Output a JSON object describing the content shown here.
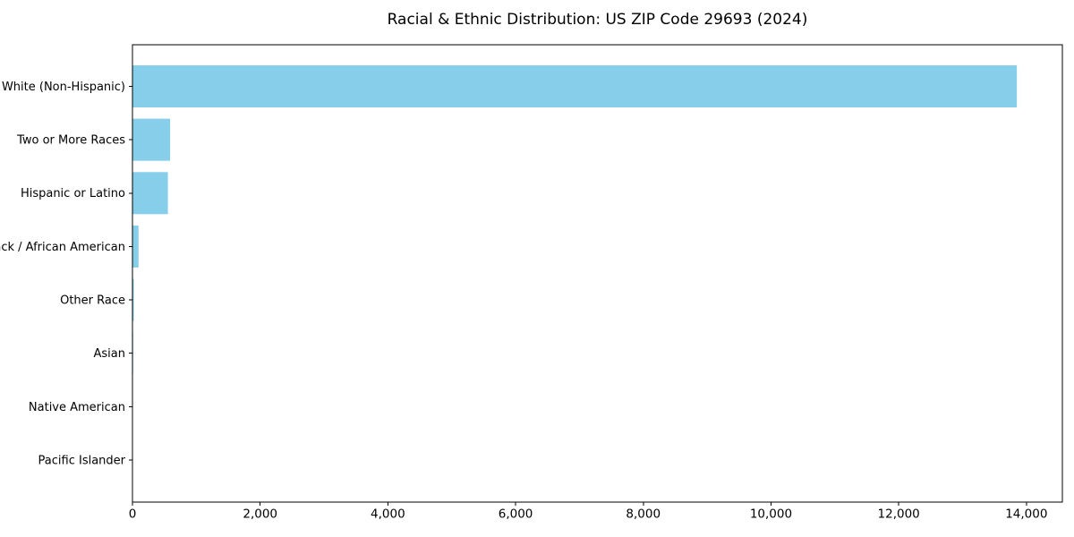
{
  "page": {
    "background": "#ffffff"
  },
  "chart_data": {
    "type": "bar",
    "orientation": "horizontal",
    "title": "Racial & Ethnic Distribution: US ZIP Code 29693 (2024)",
    "categories": [
      "White (Non-Hispanic)",
      "Two or More Races",
      "Hispanic or Latino",
      "Black / African American",
      "Other Race",
      "Asian",
      "Native American",
      "Pacific Islander"
    ],
    "values": [
      13850,
      590,
      555,
      95,
      20,
      10,
      0,
      0
    ],
    "xlabel": "",
    "ylabel": "",
    "xlim": [
      0,
      14563
    ],
    "xticks": [
      0,
      2000,
      4000,
      6000,
      8000,
      10000,
      12000,
      14000
    ],
    "xtick_labels": [
      "0",
      "2,000",
      "4,000",
      "6,000",
      "8,000",
      "10,000",
      "12,000",
      "14,000"
    ],
    "bar_color": "#87CEEB",
    "spine_color": "#000000",
    "text_color": "#000000",
    "grid": false,
    "legend": "none",
    "bar_height_frac": 0.79
  }
}
